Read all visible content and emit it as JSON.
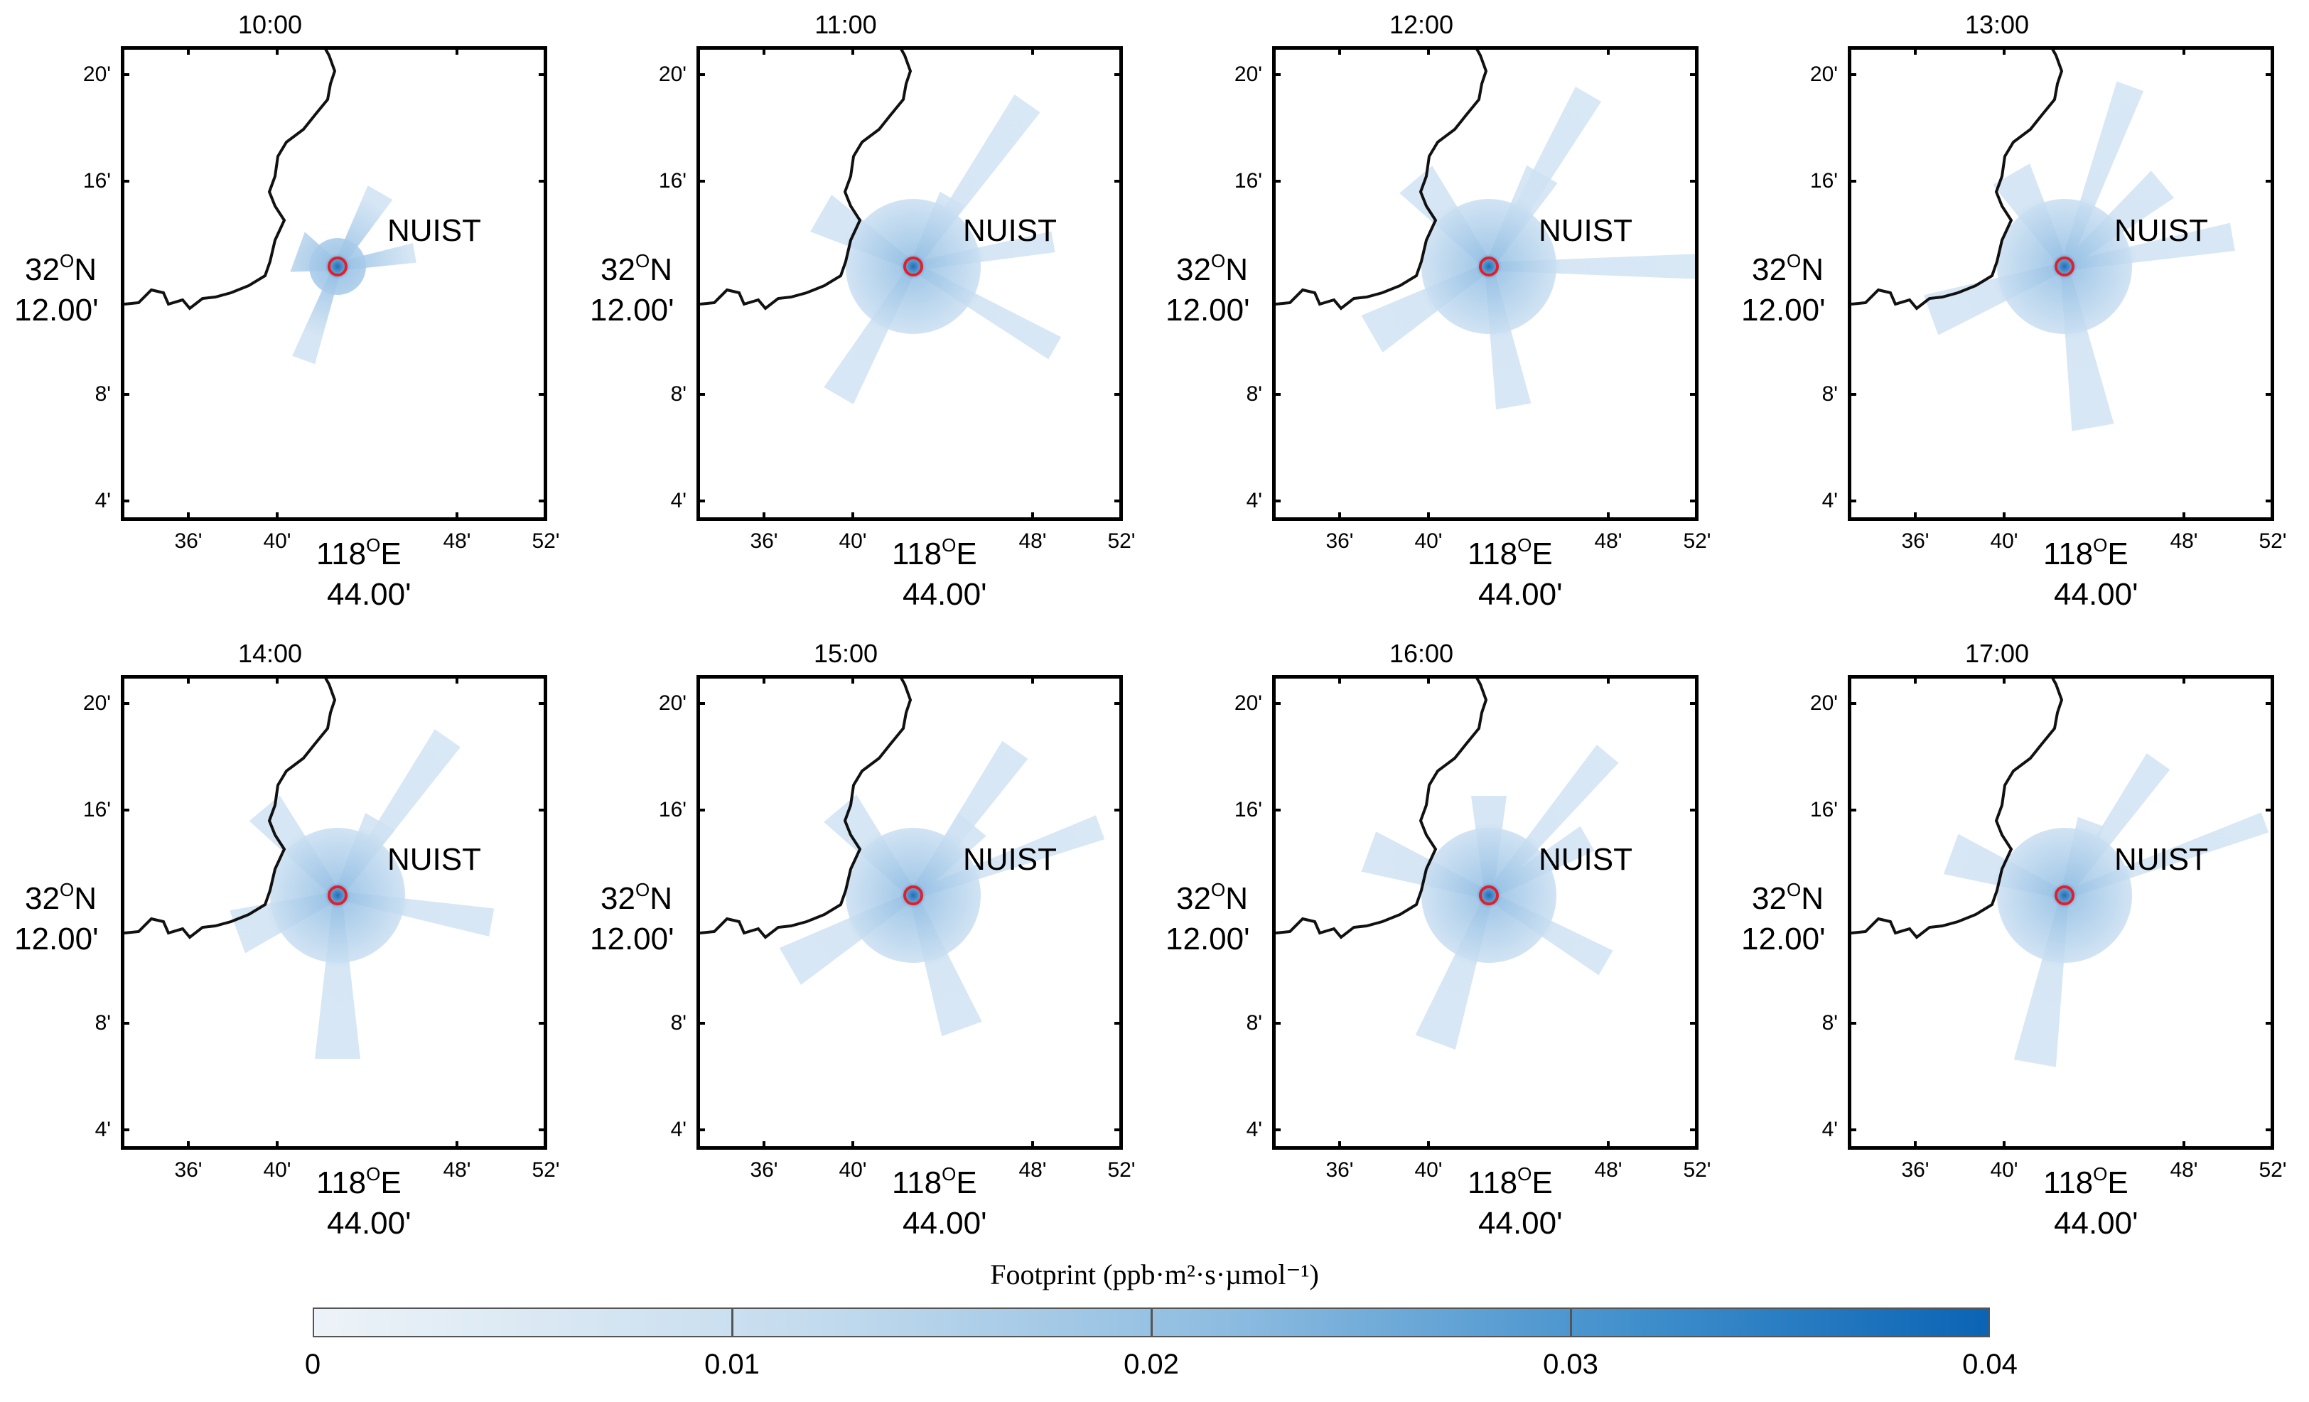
{
  "panels": [
    {
      "time": "10:00"
    },
    {
      "time": "11:00"
    },
    {
      "time": "12:00"
    },
    {
      "time": "13:00"
    },
    {
      "time": "14:00"
    },
    {
      "time": "15:00"
    },
    {
      "time": "16:00"
    },
    {
      "time": "17:00"
    }
  ],
  "axes": {
    "lat_ticks": [
      "20'",
      "16'",
      "8'",
      "4'"
    ],
    "lon_ticks": [
      "36'",
      "40'",
      "48'",
      "52'"
    ],
    "lat_label": {
      "deg": "32",
      "sup": "O",
      "hemi": "N",
      "minutes": "12.00'"
    },
    "lon_label": {
      "deg": "118",
      "sup": "O",
      "hemi": "E",
      "minutes": "44.00'"
    }
  },
  "station_label": "NUIST",
  "colorbar": {
    "label": "Footprint (ppb·m²·s·µmol⁻¹)",
    "ticks": [
      "0",
      "0.01",
      "0.02",
      "0.03",
      "0.04"
    ],
    "min": 0,
    "max": 0.04
  },
  "colors": {
    "plume_light": "#cfe2f3",
    "plume_mid": "#9cc4e6",
    "plume_dark": "#1f6fb8",
    "station_marker": "#e0202a",
    "coastline": "#111111"
  }
}
